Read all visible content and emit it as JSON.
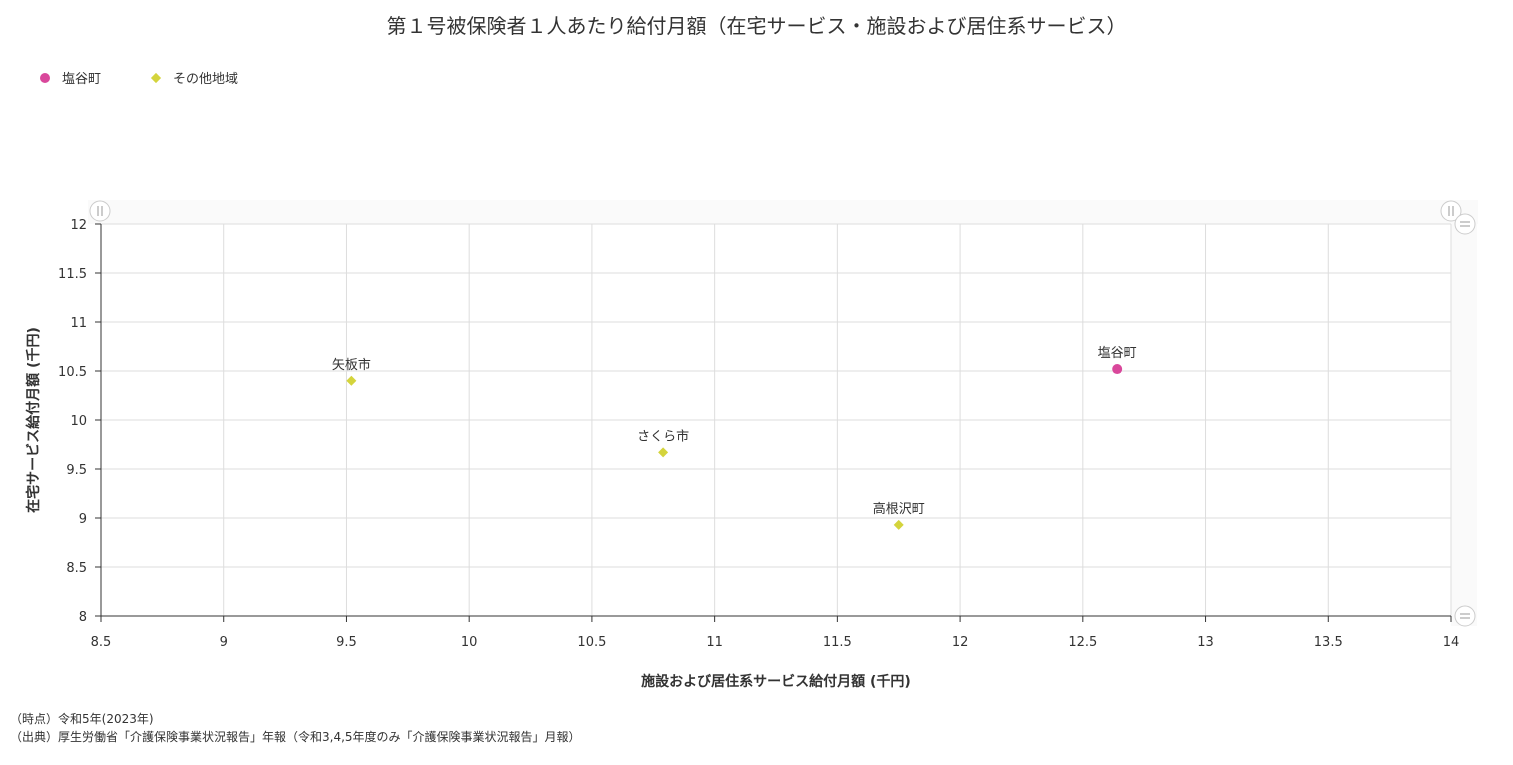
{
  "chart_data": {
    "type": "scatter",
    "title": "第１号被保険者１人あたり給付月額（在宅サービス・施設および居住系サービス）",
    "xlabel": "施設および居住系サービス給付月額 (千円)",
    "ylabel": "在宅サービス給付月額 (千円)",
    "xlim": [
      8.5,
      14
    ],
    "ylim": [
      8,
      12
    ],
    "x_ticks": [
      "8.5",
      "9",
      "9.5",
      "10",
      "10.5",
      "11",
      "11.5",
      "12",
      "12.5",
      "13",
      "13.5",
      "14"
    ],
    "y_ticks": [
      "8",
      "8.5",
      "9",
      "9.5",
      "10",
      "10.5",
      "11",
      "11.5",
      "12"
    ],
    "grid": true,
    "legend_position": "top-left",
    "series": [
      {
        "name": "塩谷町",
        "color": "#d9479b",
        "marker": "circle",
        "points": [
          {
            "label": "塩谷町",
            "x": 12.64,
            "y": 10.52
          }
        ]
      },
      {
        "name": "その他地域",
        "color": "#d4d43c",
        "marker": "diamond",
        "points": [
          {
            "label": "矢板市",
            "x": 9.52,
            "y": 10.4
          },
          {
            "label": "さくら市",
            "x": 10.79,
            "y": 9.67
          },
          {
            "label": "高根沢町",
            "x": 11.75,
            "y": 8.93
          }
        ]
      }
    ]
  },
  "notes": {
    "time": "（時点）令和5年(2023年)",
    "source": "（出典）厚生労働省「介護保険事業状況報告」年報（令和3,4,5年度のみ「介護保険事業状況報告」月報）"
  }
}
